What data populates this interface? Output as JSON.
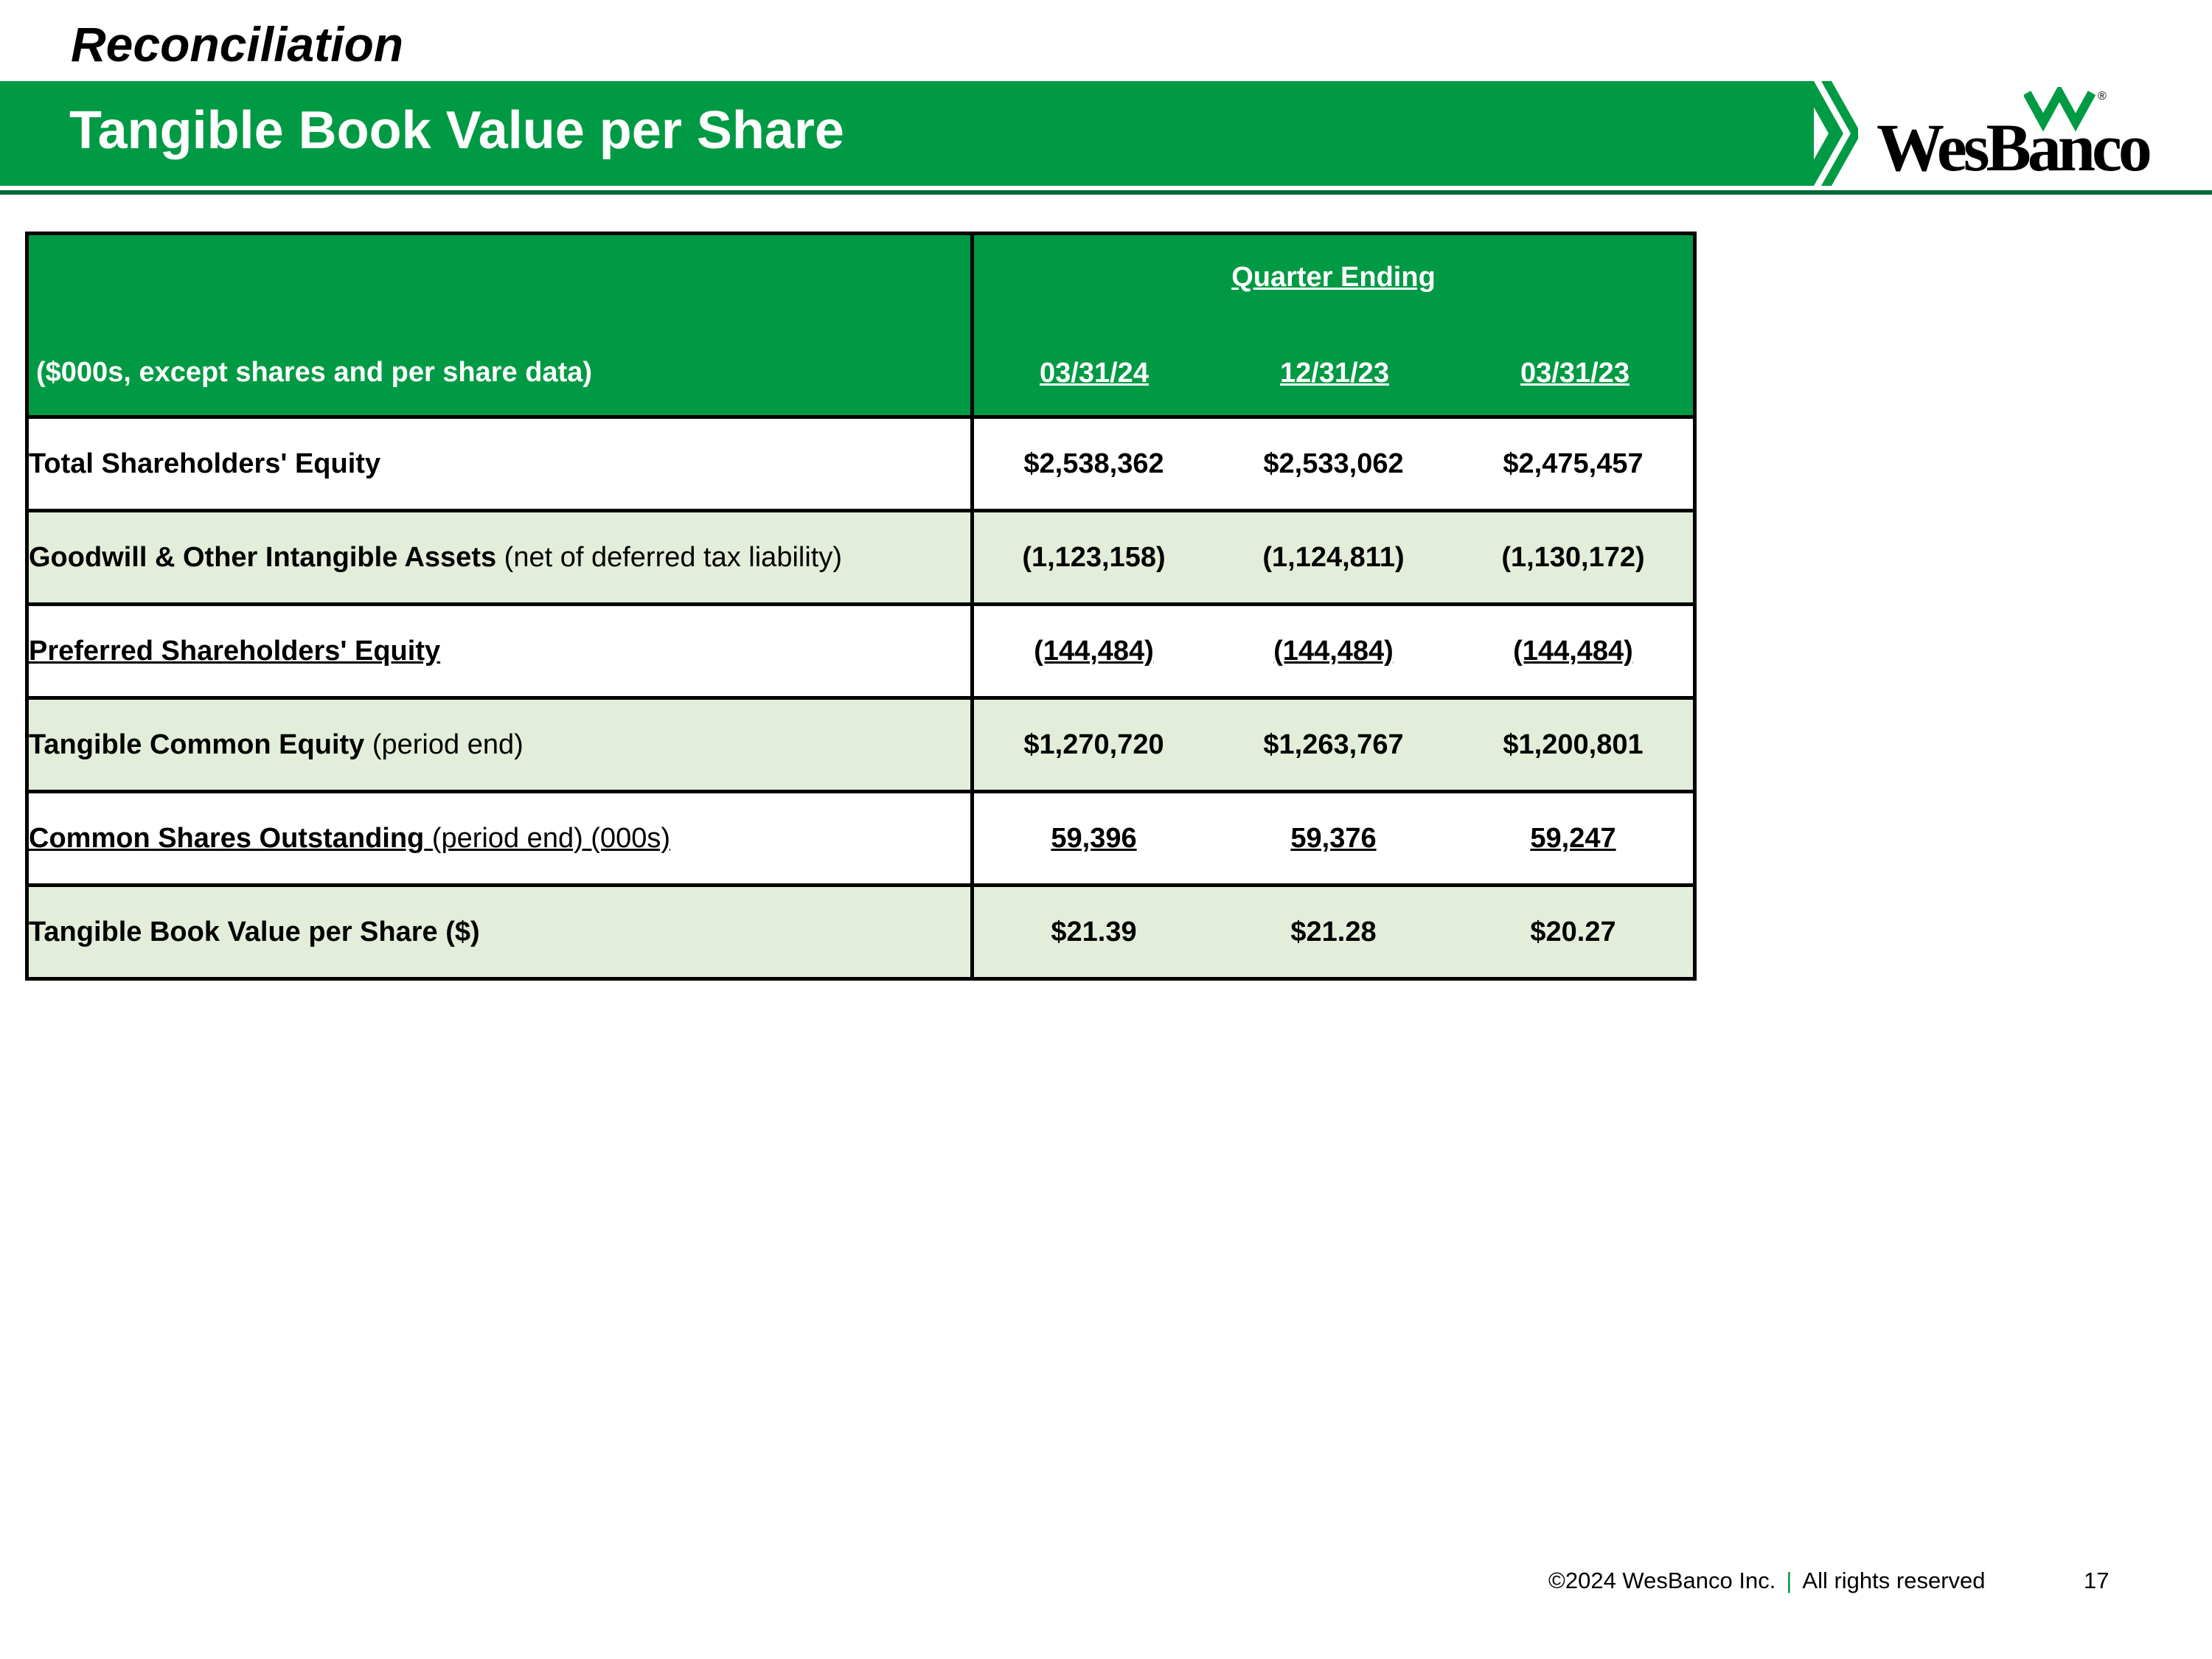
{
  "header": {
    "kicker": "Reconciliation",
    "title": "Tangible Book Value per Share",
    "logo_text": "WesBanco",
    "logo_reg": "®"
  },
  "table": {
    "units_label": "($000s, except shares and per share data)",
    "quarter_heading": "Quarter Ending",
    "periods": [
      "03/31/24",
      "12/31/23",
      "03/31/23"
    ],
    "rows": [
      {
        "label_bold": "Total Shareholders' Equity",
        "label_note": "",
        "values": [
          "$2,538,362",
          "$2,533,062",
          "$2,475,457"
        ]
      },
      {
        "label_bold": "Goodwill & Other Intangible Assets",
        "label_note": " (net of deferred tax liability)",
        "values": [
          "(1,123,158)",
          "(1,124,811)",
          "(1,130,172)"
        ]
      },
      {
        "label_bold": "Preferred Shareholders' Equity",
        "label_note": "",
        "values": [
          "(144,484)",
          "(144,484)",
          "(144,484)"
        ]
      },
      {
        "label_bold": "Tangible Common Equity",
        "label_note": " (period end)",
        "values": [
          "$1,270,720",
          "$1,263,767",
          "$1,200,801"
        ]
      },
      {
        "label_bold": "Common Shares Outstanding",
        "label_note": " (period end) (000s)",
        "values": [
          "59,396",
          "59,376",
          "59,247"
        ]
      },
      {
        "label_bold": "Tangible Book Value per Share ($)",
        "label_note": "",
        "values": [
          "$21.39",
          "$21.28",
          "$20.27"
        ]
      }
    ]
  },
  "footer": {
    "copyright": "©2024 WesBanco Inc.",
    "separator": "|",
    "rights": "All rights reserved",
    "page_number": "17"
  },
  "colors": {
    "brand_green": "#009a44",
    "dark_green": "#006a38",
    "row_shade": "#e2eeda"
  }
}
